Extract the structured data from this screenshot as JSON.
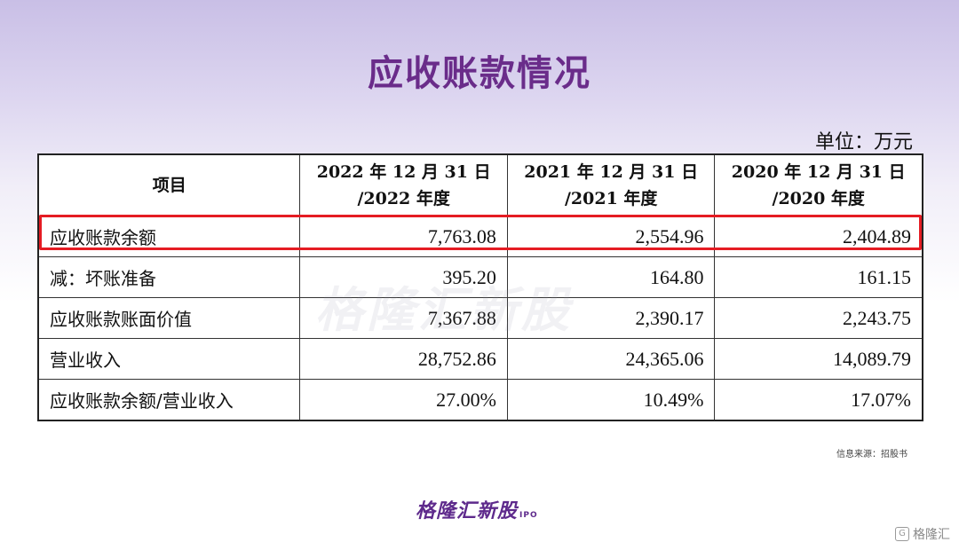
{
  "title": "应收账款情况",
  "unit": "单位：万元",
  "table": {
    "headers": {
      "item": "项目",
      "cols": [
        {
          "line1": "2022 年 12 月 31 日",
          "line2": "/2022 年度"
        },
        {
          "line1": "2021 年 12 月 31 日",
          "line2": "/2021 年度"
        },
        {
          "line1": "2020 年 12 月 31 日",
          "line2": "/2020 年度"
        }
      ]
    },
    "rows": [
      {
        "label": "应收账款余额",
        "values": [
          "7,763.08",
          "2,554.96",
          "2,404.89"
        ]
      },
      {
        "label": "减：坏账准备",
        "values": [
          "395.20",
          "164.80",
          "161.15"
        ]
      },
      {
        "label": "应收账款账面价值",
        "values": [
          "7,367.88",
          "2,390.17",
          "2,243.75"
        ]
      },
      {
        "label": "营业收入",
        "values": [
          "28,752.86",
          "24,365.06",
          "14,089.79"
        ]
      },
      {
        "label": "应收账款余额/营业收入",
        "values": [
          "27.00%",
          "10.49%",
          "17.07%"
        ]
      }
    ]
  },
  "watermark": "格隆汇新股",
  "source": "信息来源：招股书",
  "brand": {
    "name": "格隆汇新股",
    "suffix": "IPO"
  },
  "corner": {
    "icon": "g-logo-icon",
    "text": "格隆汇"
  },
  "colors": {
    "title": "#6a2c8a",
    "highlight": "#e51c23",
    "brand": "#5e2a8c"
  }
}
